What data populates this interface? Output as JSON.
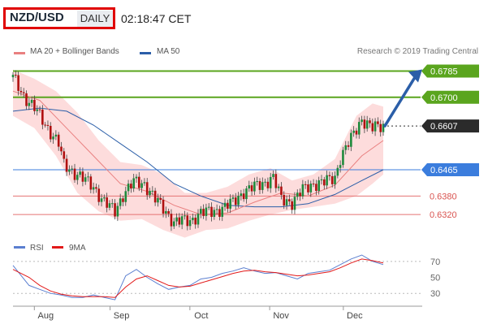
{
  "header": {
    "symbol": "NZD/USD",
    "timeframe": "DAILY",
    "time": "02:18:47 CET"
  },
  "legend": {
    "ma20_bb": "MA 20 + Bollinger Bands",
    "ma50": "MA 50",
    "credit": "Research © 2019 Trading Central"
  },
  "colors": {
    "ma20": "#e98080",
    "ma50": "#2b5ea8",
    "bb_fill": "#fdd6d6",
    "up": "#1e8a3c",
    "down": "#b01010",
    "resistance": "#5aa51e",
    "support": "#3b7ddd",
    "minor_support": "#e57373",
    "current": "#2b2b2b",
    "rsi": "#5b7fd0",
    "rsi_ma": "#e21a1a",
    "arrow": "#2b5ea8"
  },
  "chart_data": [
    {
      "type": "candlestick",
      "title": "NZD/USD DAILY",
      "x_ticks": [
        "Aug",
        "Sep",
        "Oct",
        "Nov",
        "Dec"
      ],
      "ylim": [
        0.6265,
        0.681
      ],
      "levels": [
        {
          "label": "0.6785",
          "value": 0.6785,
          "kind": "resistance"
        },
        {
          "label": "0.6700",
          "value": 0.67,
          "kind": "resistance"
        },
        {
          "label": "0.6607",
          "value": 0.6607,
          "kind": "current"
        },
        {
          "label": "0.6465",
          "value": 0.6465,
          "kind": "support"
        },
        {
          "label": "0.6380",
          "value": 0.638,
          "kind": "minor_support"
        },
        {
          "label": "0.6320",
          "value": 0.632,
          "kind": "minor_support"
        }
      ],
      "anchor_closes": [
        [
          0,
          0.6765
        ],
        [
          4,
          0.6705
        ],
        [
          8,
          0.6665
        ],
        [
          13,
          0.66
        ],
        [
          17,
          0.655
        ],
        [
          19,
          0.648
        ],
        [
          24,
          0.645
        ],
        [
          30,
          0.641
        ],
        [
          34,
          0.636
        ],
        [
          38,
          0.633
        ],
        [
          41,
          0.6385
        ],
        [
          45,
          0.6425
        ],
        [
          49,
          0.642
        ],
        [
          53,
          0.637
        ],
        [
          57,
          0.633
        ],
        [
          60,
          0.6295
        ],
        [
          63,
          0.63
        ],
        [
          66,
          0.63
        ],
        [
          70,
          0.6325
        ],
        [
          74,
          0.633
        ],
        [
          78,
          0.634
        ],
        [
          82,
          0.636
        ],
        [
          86,
          0.6395
        ],
        [
          90,
          0.641
        ],
        [
          94,
          0.6425
        ],
        [
          97,
          0.644
        ],
        [
          100,
          0.637
        ],
        [
          104,
          0.636
        ],
        [
          108,
          0.64
        ],
        [
          112,
          0.642
        ],
        [
          116,
          0.6425
        ],
        [
          120,
          0.644
        ],
        [
          122,
          0.6505
        ],
        [
          126,
          0.6565
        ],
        [
          130,
          0.663
        ],
        [
          134,
          0.66
        ],
        [
          138,
          0.6607
        ]
      ],
      "ma20_points": [
        [
          0,
          0.672
        ],
        [
          10,
          0.669
        ],
        [
          20,
          0.66
        ],
        [
          30,
          0.651
        ],
        [
          40,
          0.642
        ],
        [
          50,
          0.6395
        ],
        [
          60,
          0.635
        ],
        [
          70,
          0.632
        ],
        [
          80,
          0.6325
        ],
        [
          90,
          0.636
        ],
        [
          100,
          0.639
        ],
        [
          110,
          0.638
        ],
        [
          120,
          0.6415
        ],
        [
          130,
          0.651
        ],
        [
          138,
          0.656
        ]
      ],
      "ma50_points": [
        [
          0,
          0.6655
        ],
        [
          10,
          0.6665
        ],
        [
          20,
          0.6655
        ],
        [
          30,
          0.661
        ],
        [
          40,
          0.655
        ],
        [
          50,
          0.649
        ],
        [
          60,
          0.642
        ],
        [
          70,
          0.638
        ],
        [
          80,
          0.635
        ],
        [
          90,
          0.6345
        ],
        [
          100,
          0.6345
        ],
        [
          110,
          0.6355
        ],
        [
          120,
          0.6385
        ],
        [
          130,
          0.643
        ],
        [
          138,
          0.6465
        ]
      ],
      "bb_upper": [
        [
          0,
          0.679
        ],
        [
          8,
          0.676
        ],
        [
          16,
          0.672
        ],
        [
          24,
          0.665
        ],
        [
          32,
          0.656
        ],
        [
          40,
          0.649
        ],
        [
          48,
          0.648
        ],
        [
          56,
          0.645
        ],
        [
          64,
          0.639
        ],
        [
          72,
          0.639
        ],
        [
          80,
          0.641
        ],
        [
          88,
          0.645
        ],
        [
          96,
          0.647
        ],
        [
          104,
          0.643
        ],
        [
          112,
          0.645
        ],
        [
          120,
          0.65
        ],
        [
          128,
          0.664
        ],
        [
          134,
          0.668
        ],
        [
          138,
          0.667
        ]
      ],
      "bb_lower": [
        [
          0,
          0.664
        ],
        [
          8,
          0.66
        ],
        [
          16,
          0.651
        ],
        [
          24,
          0.639
        ],
        [
          32,
          0.633
        ],
        [
          40,
          0.63
        ],
        [
          48,
          0.6305
        ],
        [
          56,
          0.627
        ],
        [
          64,
          0.6245
        ],
        [
          72,
          0.627
        ],
        [
          80,
          0.6275
        ],
        [
          88,
          0.63
        ],
        [
          96,
          0.632
        ],
        [
          104,
          0.6335
        ],
        [
          112,
          0.6345
        ],
        [
          120,
          0.6355
        ],
        [
          128,
          0.638
        ],
        [
          134,
          0.642
        ],
        [
          138,
          0.645
        ]
      ],
      "forecast_arrow": {
        "from": 0.6607,
        "to": 0.6785
      }
    },
    {
      "type": "line",
      "x_ticks": [
        "Aug",
        "Sep",
        "Oct",
        "Nov",
        "Dec"
      ],
      "y_ticks": [
        "70",
        "50",
        "30"
      ],
      "ylim": [
        15,
        80
      ],
      "series": [
        {
          "name": "RSI",
          "points": [
            [
              0,
              65
            ],
            [
              6,
              40
            ],
            [
              10,
              35
            ],
            [
              14,
              30
            ],
            [
              18,
              28
            ],
            [
              22,
              25
            ],
            [
              26,
              25
            ],
            [
              30,
              28
            ],
            [
              34,
              25
            ],
            [
              38,
              22
            ],
            [
              42,
              52
            ],
            [
              46,
              60
            ],
            [
              50,
              50
            ],
            [
              54,
              42
            ],
            [
              58,
              35
            ],
            [
              62,
              38
            ],
            [
              66,
              40
            ],
            [
              70,
              48
            ],
            [
              74,
              50
            ],
            [
              78,
              55
            ],
            [
              82,
              58
            ],
            [
              86,
              62
            ],
            [
              90,
              58
            ],
            [
              94,
              55
            ],
            [
              98,
              56
            ],
            [
              102,
              52
            ],
            [
              106,
              48
            ],
            [
              110,
              55
            ],
            [
              114,
              57
            ],
            [
              118,
              59
            ],
            [
              122,
              66
            ],
            [
              126,
              73
            ],
            [
              130,
              78
            ],
            [
              134,
              70
            ],
            [
              138,
              66
            ]
          ]
        },
        {
          "name": "9MA",
          "points": [
            [
              0,
              60
            ],
            [
              6,
              50
            ],
            [
              10,
              40
            ],
            [
              14,
              33
            ],
            [
              18,
              29
            ],
            [
              22,
              27
            ],
            [
              26,
              26
            ],
            [
              30,
              26
            ],
            [
              34,
              26
            ],
            [
              38,
              25
            ],
            [
              42,
              38
            ],
            [
              46,
              48
            ],
            [
              50,
              52
            ],
            [
              54,
              46
            ],
            [
              58,
              40
            ],
            [
              62,
              38
            ],
            [
              66,
              39
            ],
            [
              70,
              43
            ],
            [
              74,
              47
            ],
            [
              78,
              51
            ],
            [
              82,
              55
            ],
            [
              86,
              58
            ],
            [
              90,
              59
            ],
            [
              94,
              57
            ],
            [
              98,
              56
            ],
            [
              102,
              54
            ],
            [
              106,
              52
            ],
            [
              110,
              53
            ],
            [
              114,
              55
            ],
            [
              118,
              57
            ],
            [
              122,
              62
            ],
            [
              126,
              68
            ],
            [
              130,
              73
            ],
            [
              134,
              71
            ],
            [
              138,
              68
            ]
          ]
        }
      ]
    }
  ]
}
